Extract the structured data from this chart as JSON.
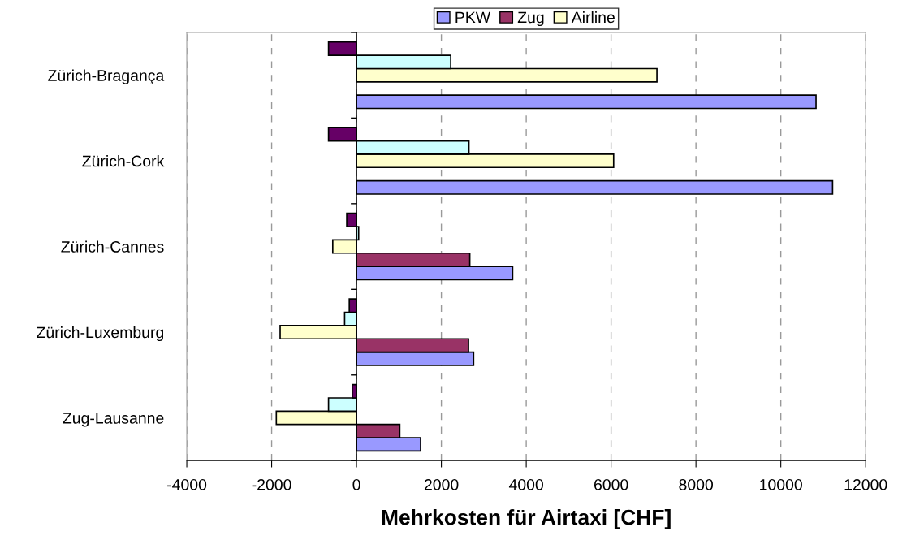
{
  "chart_data": {
    "type": "bar",
    "orientation": "horizontal",
    "xlabel": "Mehrkosten für Airtaxi [CHF]",
    "categories": [
      "Zürich-Bragança",
      "Zürich-Cork",
      "Zürich-Cannes",
      "Zürich-Luxemburg",
      "Zug-Lausanne"
    ],
    "series": [
      {
        "name": "PKW",
        "color": "#9999ff",
        "values": [
          10830,
          11220,
          3680,
          2760,
          1510
        ]
      },
      {
        "name": "Zug",
        "color": "#993366",
        "values": [
          null,
          null,
          2670,
          2640,
          1020
        ]
      },
      {
        "name": "Airline",
        "color": "#ffffcc",
        "values": [
          7080,
          6060,
          -560,
          -1800,
          -1890
        ]
      },
      {
        "color": "#ccffff",
        "values": [
          2220,
          2650,
          50,
          -280,
          -660
        ]
      },
      {
        "color": "#660066",
        "values": [
          -660,
          -660,
          -230,
          -170,
          -100
        ]
      }
    ],
    "xlim": [
      -4000,
      12000
    ],
    "xticks": [
      -4000,
      -2000,
      0,
      2000,
      4000,
      6000,
      8000,
      10000,
      12000
    ],
    "grid": "x",
    "legend": "top"
  }
}
